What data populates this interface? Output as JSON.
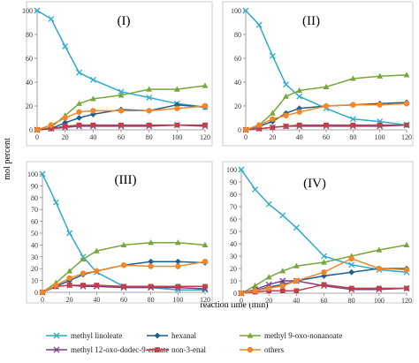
{
  "figure": {
    "ylabel": "mol percent",
    "xlabel": "reaction time (min)"
  },
  "series_styles": [
    {
      "name": "methyl linoleate",
      "color": "#2eaacb",
      "marker": "x"
    },
    {
      "name": "hexanal",
      "color": "#1f5f8b",
      "marker": "diamond"
    },
    {
      "name": "methyl 9-oxo-nonanoate",
      "color": "#77a63b",
      "marker": "triangle"
    },
    {
      "name": "methyl 12-oxo-dodec-9-enoate",
      "color": "#7b3f8c",
      "marker": "x"
    },
    {
      "name": "non-3-enal",
      "color": "#c0404a",
      "marker": "square"
    },
    {
      "name": "others",
      "color": "#f0882a",
      "marker": "circle"
    }
  ],
  "chart_data": [
    {
      "type": "line",
      "title": "(I)",
      "x": [
        0,
        10,
        20,
        30,
        40,
        60,
        80,
        100,
        120
      ],
      "xticks": [
        0,
        20,
        40,
        60,
        80,
        100,
        120
      ],
      "ylim": [
        0,
        100
      ],
      "yticks": [
        0,
        20,
        40,
        60,
        80,
        100
      ],
      "series": [
        {
          "name": "methyl linoleate",
          "values": [
            100,
            93,
            70,
            48,
            42,
            32,
            27,
            22,
            19
          ]
        },
        {
          "name": "hexanal",
          "values": [
            0,
            1,
            6,
            10,
            13,
            17,
            16,
            21,
            19
          ]
        },
        {
          "name": "methyl 9-oxo-nonanoate",
          "values": [
            0,
            2,
            12,
            22,
            26,
            29,
            34,
            34,
            37
          ]
        },
        {
          "name": "methyl 12-oxo-dodec-9-enoate",
          "values": [
            0,
            1,
            2,
            3,
            3,
            3,
            3,
            4,
            3
          ]
        },
        {
          "name": "non-3-enal",
          "values": [
            0,
            1,
            3,
            4,
            4,
            4,
            4,
            4,
            4
          ]
        },
        {
          "name": "others",
          "values": [
            0,
            4,
            10,
            15,
            16,
            16,
            16,
            18,
            20
          ]
        }
      ]
    },
    {
      "type": "line",
      "title": "(II)",
      "x": [
        0,
        10,
        20,
        30,
        40,
        60,
        80,
        100,
        120
      ],
      "xticks": [
        0,
        20,
        40,
        60,
        80,
        100,
        120
      ],
      "ylim": [
        0,
        100
      ],
      "yticks": [
        0,
        20,
        40,
        60,
        80,
        100
      ],
      "series": [
        {
          "name": "methyl linoleate",
          "values": [
            100,
            88,
            62,
            38,
            28,
            18,
            9,
            7,
            4
          ]
        },
        {
          "name": "hexanal",
          "values": [
            0,
            3,
            7,
            14,
            18,
            20,
            21,
            22,
            23
          ]
        },
        {
          "name": "methyl 9-oxo-nonanoate",
          "values": [
            0,
            4,
            14,
            28,
            33,
            36,
            43,
            45,
            46
          ]
        },
        {
          "name": "methyl 12-oxo-dodec-9-enoate",
          "values": [
            0,
            1,
            2,
            3,
            3,
            3,
            3,
            3,
            4
          ]
        },
        {
          "name": "non-3-enal",
          "values": [
            0,
            1,
            2,
            3,
            4,
            4,
            4,
            4,
            4
          ]
        },
        {
          "name": "others",
          "values": [
            0,
            4,
            9,
            12,
            15,
            20,
            21,
            21,
            22
          ]
        }
      ]
    },
    {
      "type": "line",
      "title": "(III)",
      "x": [
        0,
        10,
        20,
        30,
        40,
        60,
        80,
        100,
        120
      ],
      "xticks": [
        0,
        20,
        40,
        60,
        80,
        100,
        120
      ],
      "ylim": [
        0,
        100
      ],
      "yticks": [
        0,
        10,
        20,
        30,
        40,
        50,
        60,
        70,
        80,
        90,
        100
      ],
      "series": [
        {
          "name": "methyl linoleate",
          "values": [
            100,
            76,
            50,
            30,
            17,
            5,
            4,
            2,
            2
          ]
        },
        {
          "name": "hexanal",
          "values": [
            0,
            5,
            10,
            15,
            18,
            23,
            26,
            26,
            25
          ]
        },
        {
          "name": "methyl 9-oxo-nonanoate",
          "values": [
            0,
            8,
            18,
            28,
            35,
            40,
            42,
            42,
            40
          ]
        },
        {
          "name": "methyl 12-oxo-dodec-9-enoate",
          "values": [
            0,
            5,
            6,
            5,
            5,
            4,
            4,
            4,
            3
          ]
        },
        {
          "name": "non-3-enal",
          "values": [
            0,
            5,
            6,
            6,
            6,
            5,
            5,
            5,
            5
          ]
        },
        {
          "name": "others",
          "values": [
            0,
            6,
            12,
            16,
            18,
            23,
            22,
            22,
            26
          ]
        }
      ]
    },
    {
      "type": "line",
      "title": "(IV)",
      "x": [
        0,
        10,
        20,
        30,
        40,
        60,
        80,
        100,
        120
      ],
      "xticks": [
        0,
        20,
        40,
        60,
        80,
        100,
        120
      ],
      "ylim": [
        0,
        100
      ],
      "yticks": [
        0,
        10,
        20,
        30,
        40,
        50,
        60,
        70,
        80,
        90,
        100
      ],
      "series": [
        {
          "name": "methyl linoleate",
          "values": [
            100,
            84,
            72,
            63,
            53,
            30,
            23,
            19,
            17
          ]
        },
        {
          "name": "hexanal",
          "values": [
            0,
            2,
            5,
            7,
            10,
            14,
            17,
            20,
            20
          ]
        },
        {
          "name": "methyl 9-oxo-nonanoate",
          "values": [
            0,
            6,
            13,
            18,
            22,
            25,
            30,
            35,
            39
          ]
        },
        {
          "name": "methyl 12-oxo-dodec-9-enoate",
          "values": [
            0,
            3,
            7,
            10,
            10,
            6,
            3,
            3,
            4
          ]
        },
        {
          "name": "non-3-enal",
          "values": [
            0,
            1,
            2,
            2,
            2,
            7,
            4,
            4,
            4
          ]
        },
        {
          "name": "others",
          "values": [
            0,
            2,
            4,
            6,
            10,
            17,
            28,
            20,
            19
          ]
        }
      ]
    }
  ]
}
